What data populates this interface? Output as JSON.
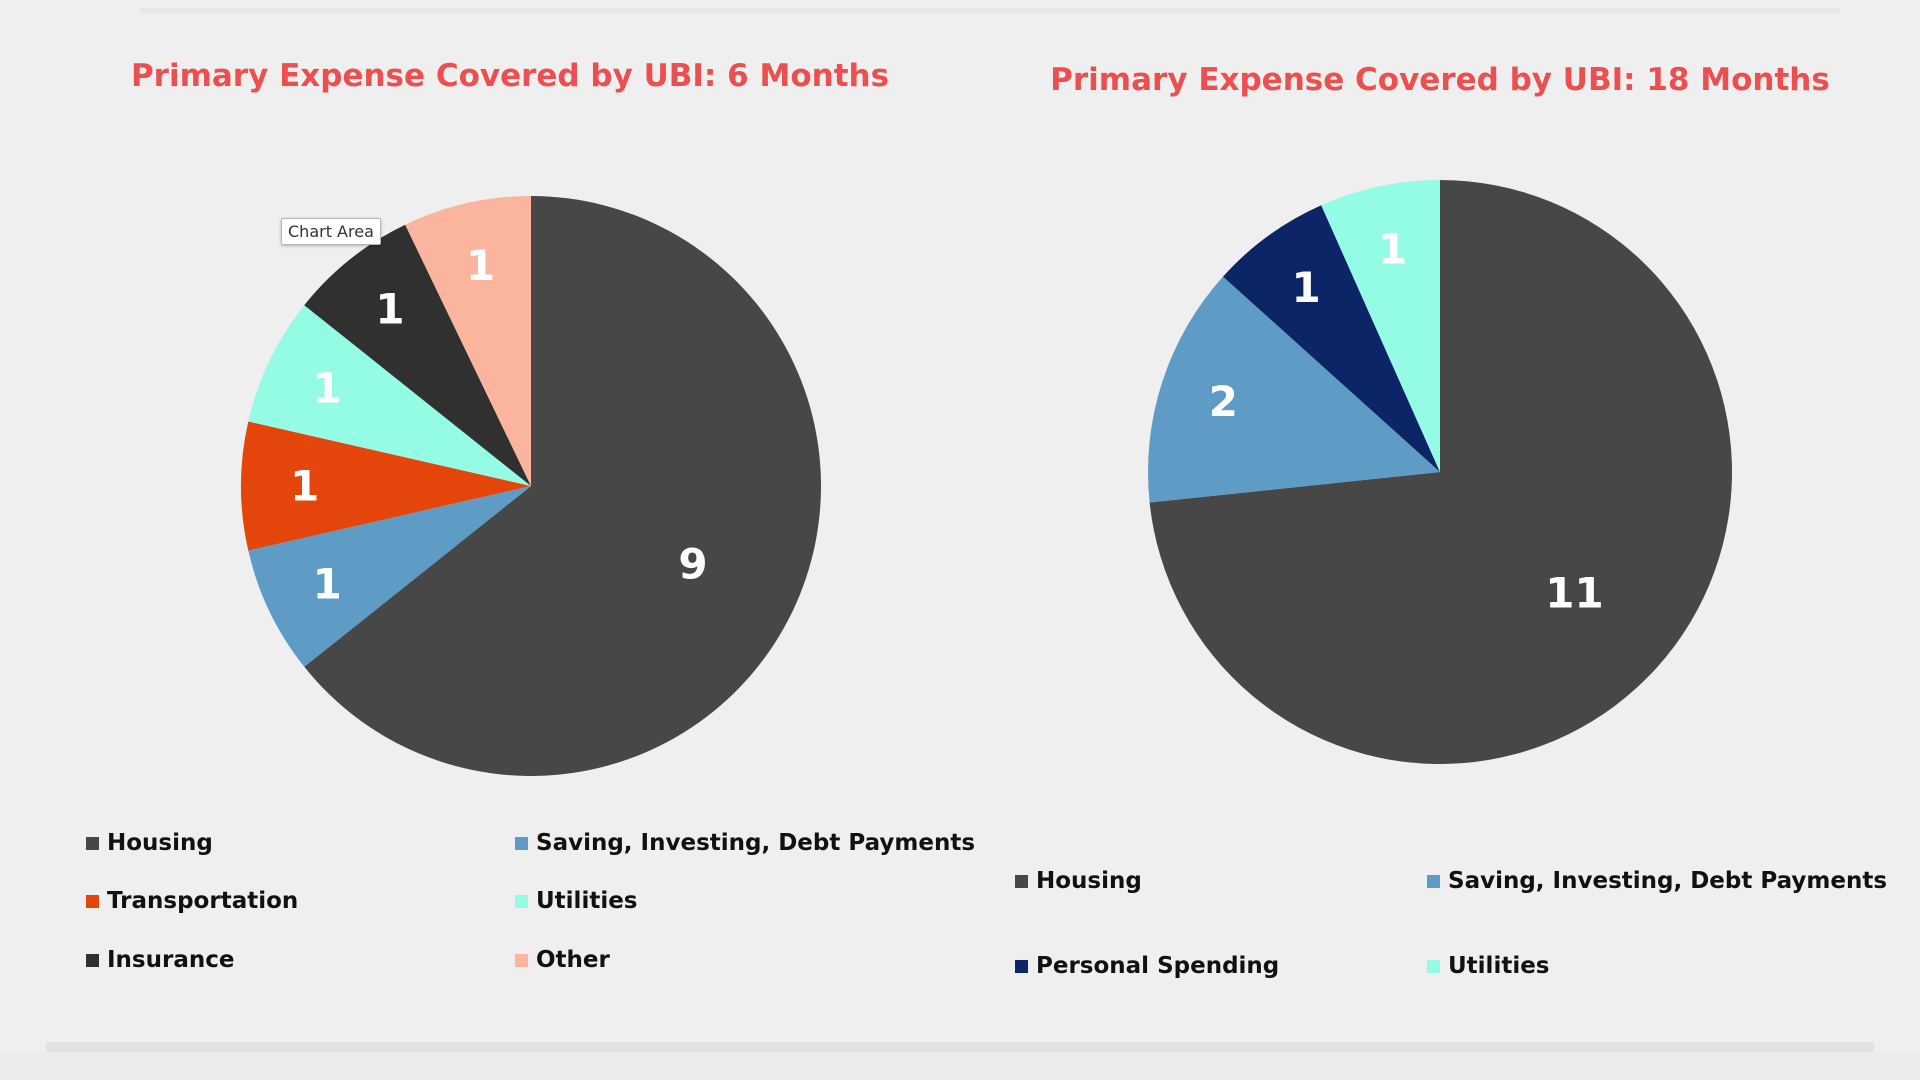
{
  "chart_data": [
    {
      "type": "pie",
      "title": "Primary Expense Covered by UBI: 6 Months",
      "categories": [
        "Housing",
        "Saving, Investing, Debt Payments",
        "Transportation",
        "Utilities",
        "Insurance",
        "Other"
      ],
      "values": [
        9,
        1,
        1,
        1,
        1,
        1
      ],
      "colors": [
        "#474747",
        "#5e9bc5",
        "#e3450b",
        "#94fbe5",
        "#303030",
        "#fbb49d"
      ],
      "data_labels": [
        "9",
        "1",
        "1",
        "1",
        "1",
        "1"
      ],
      "legend": "bottom"
    },
    {
      "type": "pie",
      "title": "Primary Expense Covered by UBI: 18 Months",
      "categories": [
        "Housing",
        "Saving, Investing, Debt Payments",
        "Personal Spending",
        "Utilities"
      ],
      "values": [
        11,
        2,
        1,
        1
      ],
      "colors": [
        "#474747",
        "#5e9bc5",
        "#0b2566",
        "#94fbe5"
      ],
      "data_labels": [
        "11",
        "2",
        "1",
        "1"
      ],
      "legend": "bottom"
    }
  ],
  "tooltip": {
    "text": "Chart Area"
  }
}
